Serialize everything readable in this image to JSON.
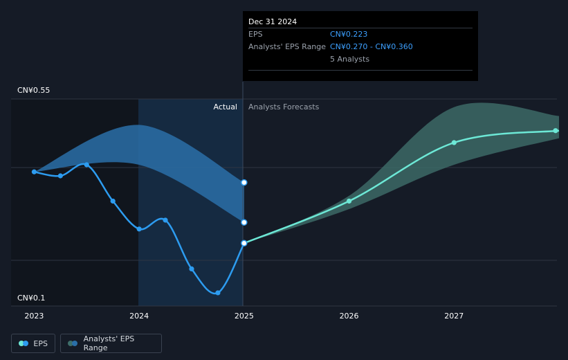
{
  "chart_data": {
    "type": "line",
    "y_axis": {
      "top_label": "CN¥0.55",
      "bottom_label": "CN¥0.1",
      "ylim": [
        0.1,
        0.55
      ]
    },
    "x_axis": {
      "ticks": [
        {
          "label": "2023",
          "value": 2023
        },
        {
          "label": "2024",
          "value": 2024
        },
        {
          "label": "2025",
          "value": 2025
        },
        {
          "label": "2026",
          "value": 2026
        },
        {
          "label": "2027",
          "value": 2027
        }
      ],
      "xlim": [
        2022.78,
        2027.98
      ]
    },
    "sections": {
      "actual_label": "Actual",
      "forecast_label": "Analysts Forecasts",
      "divider_x": 2025
    },
    "eps_actual": [
      {
        "x": 2023.0,
        "y": 0.384
      },
      {
        "x": 2023.25,
        "y": 0.375
      },
      {
        "x": 2023.5,
        "y": 0.4
      },
      {
        "x": 2023.75,
        "y": 0.318
      },
      {
        "x": 2024.0,
        "y": 0.255
      },
      {
        "x": 2024.25,
        "y": 0.275
      },
      {
        "x": 2024.5,
        "y": 0.165
      },
      {
        "x": 2024.75,
        "y": 0.111
      },
      {
        "x": 2025.0,
        "y": 0.223
      }
    ],
    "eps_forecast": [
      {
        "x": 2025.0,
        "y": 0.223
      },
      {
        "x": 2026.0,
        "y": 0.318
      },
      {
        "x": 2027.0,
        "y": 0.45
      },
      {
        "x": 2028.0,
        "y": 0.477
      }
    ],
    "actual_range": {
      "upper": [
        {
          "x": 2023.0,
          "y": 0.384
        },
        {
          "x": 2024.0,
          "y": 0.49
        },
        {
          "x": 2025.0,
          "y": 0.36
        }
      ],
      "lower": [
        {
          "x": 2023.0,
          "y": 0.384
        },
        {
          "x": 2024.0,
          "y": 0.4
        },
        {
          "x": 2025.0,
          "y": 0.27
        }
      ]
    },
    "forecast_range": {
      "upper": [
        {
          "x": 2025.0,
          "y": 0.223
        },
        {
          "x": 2026.0,
          "y": 0.33
        },
        {
          "x": 2027.0,
          "y": 0.53
        },
        {
          "x": 2028.0,
          "y": 0.51
        }
      ],
      "lower": [
        {
          "x": 2025.0,
          "y": 0.223
        },
        {
          "x": 2026.0,
          "y": 0.3
        },
        {
          "x": 2027.0,
          "y": 0.4
        },
        {
          "x": 2028.0,
          "y": 0.46
        }
      ]
    },
    "range_markers": [
      0.36,
      0.27
    ],
    "colors": {
      "eps_actual": "#2d9cf0",
      "eps_forecast": "#6de8d6",
      "actual_range_fill": "#2a6fa8",
      "forecast_range_fill": "#3e6e6a",
      "grid": "#2e3542"
    }
  },
  "tooltip": {
    "date": "Dec 31 2024",
    "eps_label": "EPS",
    "eps_value": "CN¥0.223",
    "range_label": "Analysts' EPS Range",
    "range_value": "CN¥0.270 - CN¥0.360",
    "analysts": "5 Analysts"
  },
  "legend": {
    "eps_label": "EPS",
    "range_label": "Analysts' EPS Range"
  }
}
